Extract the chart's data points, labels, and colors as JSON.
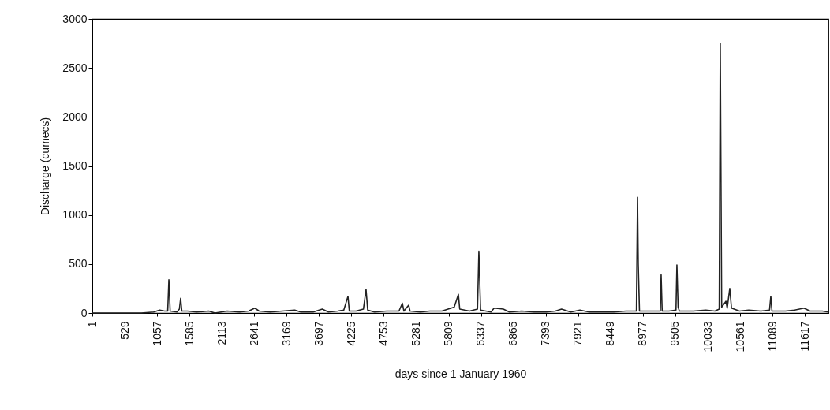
{
  "chart_data": {
    "type": "line",
    "xlabel": "days since 1 January 1960",
    "ylabel": "Discharge (cumecs)",
    "x": [
      1,
      200,
      500,
      800,
      1000,
      1100,
      1180,
      1230,
      1249,
      1270,
      1380,
      1420,
      1441,
      1460,
      1550,
      1700,
      1900,
      2000,
      2200,
      2400,
      2550,
      2650,
      2720,
      2900,
      3100,
      3300,
      3400,
      3600,
      3750,
      3850,
      4000,
      4100,
      4168,
      4190,
      4300,
      4420,
      4463,
      4490,
      4600,
      4800,
      5000,
      5055,
      5080,
      5158,
      5180,
      5350,
      5500,
      5700,
      5900,
      5968,
      5990,
      6150,
      6280,
      6302,
      6330,
      6500,
      6550,
      6700,
      6800,
      7000,
      7200,
      7400,
      7550,
      7650,
      7800,
      7950,
      8100,
      8300,
      8500,
      8700,
      8870,
      8888,
      8900,
      8920,
      9100,
      9260,
      9273,
      9290,
      9400,
      9515,
      9530,
      9550,
      9570,
      9800,
      10000,
      10150,
      10220,
      10237,
      10260,
      10330,
      10350,
      10392,
      10420,
      10550,
      10700,
      10900,
      11040,
      11061,
      11080,
      11300,
      11450,
      11600,
      11700,
      11900,
      12000
    ],
    "series": [
      {
        "color": "#222222",
        "values": [
          0,
          0,
          0,
          0,
          10,
          30,
          20,
          20,
          340,
          20,
          10,
          40,
          150,
          20,
          20,
          10,
          20,
          0,
          20,
          10,
          20,
          50,
          20,
          10,
          20,
          30,
          10,
          10,
          40,
          10,
          20,
          30,
          170,
          20,
          20,
          40,
          240,
          30,
          10,
          20,
          20,
          100,
          20,
          80,
          20,
          10,
          20,
          20,
          60,
          190,
          40,
          20,
          40,
          630,
          30,
          10,
          50,
          40,
          10,
          20,
          10,
          10,
          20,
          40,
          10,
          30,
          10,
          10,
          10,
          20,
          20,
          1180,
          500,
          20,
          20,
          20,
          390,
          20,
          20,
          30,
          490,
          60,
          20,
          20,
          30,
          20,
          40,
          2750,
          60,
          120,
          50,
          250,
          50,
          20,
          30,
          20,
          30,
          170,
          20,
          20,
          30,
          50,
          20,
          20,
          10
        ]
      }
    ],
    "xlim": [
      1,
      12000
    ],
    "xticks": [
      1,
      529,
      1057,
      1585,
      2113,
      2641,
      3169,
      3697,
      4225,
      4753,
      5281,
      5809,
      6337,
      6865,
      7393,
      7921,
      8449,
      8977,
      9505,
      10033,
      10561,
      11089,
      11617
    ],
    "ylim": [
      0,
      3000
    ],
    "yticks": [
      0,
      500,
      1000,
      1500,
      2000,
      2500,
      3000
    ],
    "grid": false,
    "marker": "none",
    "line_style": "solid"
  }
}
